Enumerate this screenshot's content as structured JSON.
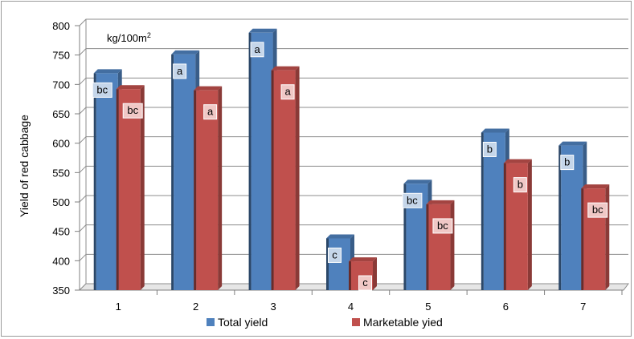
{
  "chart_data": {
    "type": "bar",
    "categories": [
      "1",
      "2",
      "3",
      "4",
      "5",
      "6",
      "7"
    ],
    "series": [
      {
        "name": "Total yield",
        "color": "#4f81bd",
        "values": [
          719,
          751,
          788,
          438,
          531,
          618,
          596
        ],
        "letters": [
          "bc",
          "a",
          "a",
          "c",
          "bc",
          "b",
          "b"
        ]
      },
      {
        "name": "Marketable yied",
        "color": "#c0504d",
        "values": [
          692,
          690,
          724,
          399,
          496,
          566,
          523
        ],
        "letters": [
          "bc",
          "a",
          "a",
          "c",
          "bc",
          "b",
          "bc"
        ]
      }
    ],
    "ylabel": "Yield of red cabbage",
    "unit_label": "kg/100m",
    "unit_superscript": "2",
    "ylim": [
      350,
      800
    ],
    "yticks": [
      "350",
      "400",
      "450",
      "500",
      "550",
      "600",
      "650",
      "700",
      "750",
      "800"
    ],
    "grid": true,
    "legend_position": "bottom"
  }
}
